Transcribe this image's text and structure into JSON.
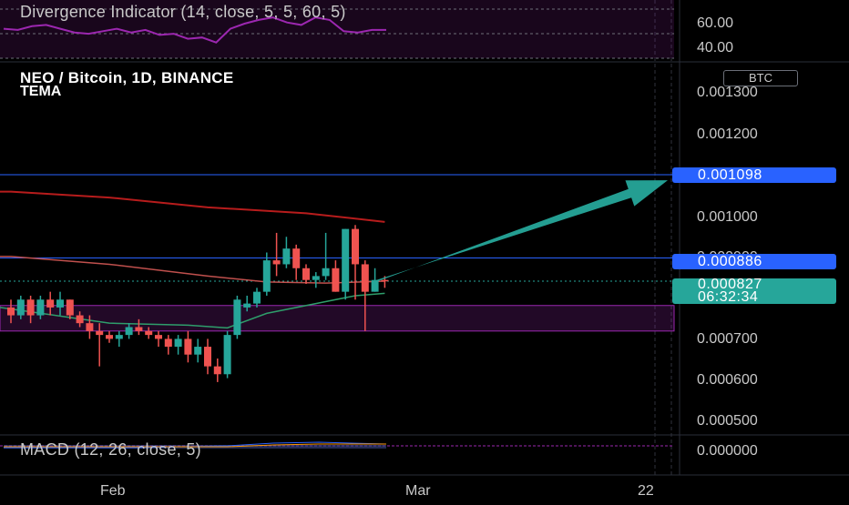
{
  "header": {
    "symbol_line": "NEO / Bitcoin, 1D, BINANCE",
    "indicator": "TEMA",
    "currency_badge": "BTC"
  },
  "divergence_panel": {
    "title": "Divergence Indicator (14, close, 5, 5, 60, 5)",
    "axis_labels": [
      "60.00",
      "40.00"
    ]
  },
  "macd_panel": {
    "title": "MACD (12, 26, close, 5)",
    "axis_label": "0.000000"
  },
  "price_axis": {
    "ticks": [
      "0.001300",
      "0.001200",
      "0.001000",
      "0.000700",
      "0.000600",
      "0.000500"
    ],
    "hidden_tick": "0.000900"
  },
  "price_tags": {
    "target": "0.001098",
    "resistance": "0.000886",
    "last_price": "0.000827",
    "countdown": "06:32:34"
  },
  "time_axis": {
    "labels": [
      "Feb",
      "Mar",
      "22"
    ]
  },
  "colors": {
    "up": "#26a69a",
    "down": "#ef5350",
    "horizontal_line": "#2962ff",
    "arrow": "#26a69a",
    "zone": "#9c27b0",
    "rsi": "#9c27b0",
    "ema_long": "#b71c1c",
    "ema_mid": "#c0504d",
    "tema": "#2e9e6b",
    "background": "#000000"
  },
  "chart_data": {
    "type": "candlestick",
    "pair": "NEO/BTC",
    "timeframe": "1D",
    "exchange": "BINANCE",
    "y_scale": "linear",
    "ylim": [
      0.00044,
      0.00136
    ],
    "candles": [
      {
        "o": 0.00076,
        "h": 0.00078,
        "l": 0.00072,
        "c": 0.00074
      },
      {
        "o": 0.00074,
        "h": 0.00079,
        "l": 0.00073,
        "c": 0.00078
      },
      {
        "o": 0.00078,
        "h": 0.00079,
        "l": 0.00072,
        "c": 0.00074
      },
      {
        "o": 0.00074,
        "h": 0.00079,
        "l": 0.00073,
        "c": 0.00078
      },
      {
        "o": 0.00078,
        "h": 0.0008,
        "l": 0.00074,
        "c": 0.00076
      },
      {
        "o": 0.00076,
        "h": 0.0008,
        "l": 0.00074,
        "c": 0.00078
      },
      {
        "o": 0.00078,
        "h": 0.00078,
        "l": 0.00073,
        "c": 0.00074
      },
      {
        "o": 0.00074,
        "h": 0.00075,
        "l": 0.00071,
        "c": 0.00072
      },
      {
        "o": 0.00072,
        "h": 0.00074,
        "l": 0.00068,
        "c": 0.0007
      },
      {
        "o": 0.0007,
        "h": 0.00072,
        "l": 0.00061,
        "c": 0.00069
      },
      {
        "o": 0.00069,
        "h": 0.0007,
        "l": 0.00067,
        "c": 0.00068
      },
      {
        "o": 0.00068,
        "h": 0.0007,
        "l": 0.00066,
        "c": 0.00069
      },
      {
        "o": 0.00069,
        "h": 0.00072,
        "l": 0.00068,
        "c": 0.00071
      },
      {
        "o": 0.00071,
        "h": 0.00073,
        "l": 0.00069,
        "c": 0.0007
      },
      {
        "o": 0.0007,
        "h": 0.00071,
        "l": 0.00068,
        "c": 0.00069
      },
      {
        "o": 0.00069,
        "h": 0.0007,
        "l": 0.00066,
        "c": 0.00068
      },
      {
        "o": 0.00068,
        "h": 0.00069,
        "l": 0.00064,
        "c": 0.00066
      },
      {
        "o": 0.00066,
        "h": 0.00069,
        "l": 0.00064,
        "c": 0.00068
      },
      {
        "o": 0.00068,
        "h": 0.0007,
        "l": 0.00062,
        "c": 0.00064
      },
      {
        "o": 0.00064,
        "h": 0.00068,
        "l": 0.00062,
        "c": 0.00066
      },
      {
        "o": 0.00066,
        "h": 0.00068,
        "l": 0.00059,
        "c": 0.00061
      },
      {
        "o": 0.00061,
        "h": 0.00063,
        "l": 0.00057,
        "c": 0.00059
      },
      {
        "o": 0.00059,
        "h": 0.0007,
        "l": 0.00058,
        "c": 0.00069
      },
      {
        "o": 0.00069,
        "h": 0.00079,
        "l": 0.00068,
        "c": 0.00078
      },
      {
        "o": 0.00076,
        "h": 0.00079,
        "l": 0.00075,
        "c": 0.00077
      },
      {
        "o": 0.00077,
        "h": 0.00081,
        "l": 0.00076,
        "c": 0.0008
      },
      {
        "o": 0.0008,
        "h": 0.0009,
        "l": 0.00079,
        "c": 0.00088
      },
      {
        "o": 0.00088,
        "h": 0.00095,
        "l": 0.00084,
        "c": 0.00087
      },
      {
        "o": 0.00087,
        "h": 0.00094,
        "l": 0.00086,
        "c": 0.00091
      },
      {
        "o": 0.00091,
        "h": 0.00092,
        "l": 0.00083,
        "c": 0.00086
      },
      {
        "o": 0.00086,
        "h": 0.00087,
        "l": 0.00082,
        "c": 0.00083
      },
      {
        "o": 0.00083,
        "h": 0.00085,
        "l": 0.00081,
        "c": 0.00084
      },
      {
        "o": 0.00084,
        "h": 0.00095,
        "l": 0.00083,
        "c": 0.00086
      },
      {
        "o": 0.00086,
        "h": 0.00088,
        "l": 0.0008,
        "c": 0.0008
      },
      {
        "o": 0.0008,
        "h": 0.00096,
        "l": 0.00078,
        "c": 0.00096
      },
      {
        "o": 0.00096,
        "h": 0.00097,
        "l": 0.00078,
        "c": 0.00087
      },
      {
        "o": 0.00087,
        "h": 0.00088,
        "l": 0.0007,
        "c": 0.0008
      },
      {
        "o": 0.0008,
        "h": 0.00086,
        "l": 0.0008,
        "c": 0.00083
      },
      {
        "o": 0.00083,
        "h": 0.00084,
        "l": 0.00081,
        "c": 0.000827
      }
    ],
    "lines": {
      "ema_long": [
        {
          "x": 0,
          "y": 0.001055
        },
        {
          "x": 10,
          "y": 0.00104
        },
        {
          "x": 20,
          "y": 0.001015
        },
        {
          "x": 30,
          "y": 0.001
        },
        {
          "x": 38,
          "y": 0.000978
        }
      ],
      "ema_mid": [
        {
          "x": 0,
          "y": 0.00089
        },
        {
          "x": 10,
          "y": 0.00087
        },
        {
          "x": 20,
          "y": 0.00084
        },
        {
          "x": 26,
          "y": 0.000825
        },
        {
          "x": 32,
          "y": 0.000822
        },
        {
          "x": 38,
          "y": 0.000827
        }
      ],
      "tema": [
        {
          "x": 10,
          "y": 0.00072
        },
        {
          "x": 18,
          "y": 0.000715
        },
        {
          "x": 22,
          "y": 0.000708
        },
        {
          "x": 26,
          "y": 0.000745
        },
        {
          "x": 31,
          "y": 0.00077
        },
        {
          "x": 35,
          "y": 0.00079
        },
        {
          "x": 38,
          "y": 0.000796
        }
      ]
    },
    "horizontal_levels": [
      0.001098,
      0.000886
    ],
    "zone": {
      "from": 0.0007,
      "to": 0.000765
    },
    "arrow": {
      "from_price": 0.000827,
      "to_price": 0.001098,
      "direction": "up"
    },
    "rsi_values": [
      55,
      54,
      57,
      58,
      55,
      52,
      51,
      53,
      55,
      52,
      54,
      50,
      51,
      47,
      48,
      44,
      55,
      59,
      62,
      64,
      60,
      58,
      64,
      62,
      53,
      52,
      54,
      54
    ],
    "rsi_ylim": [
      30,
      75
    ],
    "rsi_levels": [
      60,
      40
    ]
  }
}
